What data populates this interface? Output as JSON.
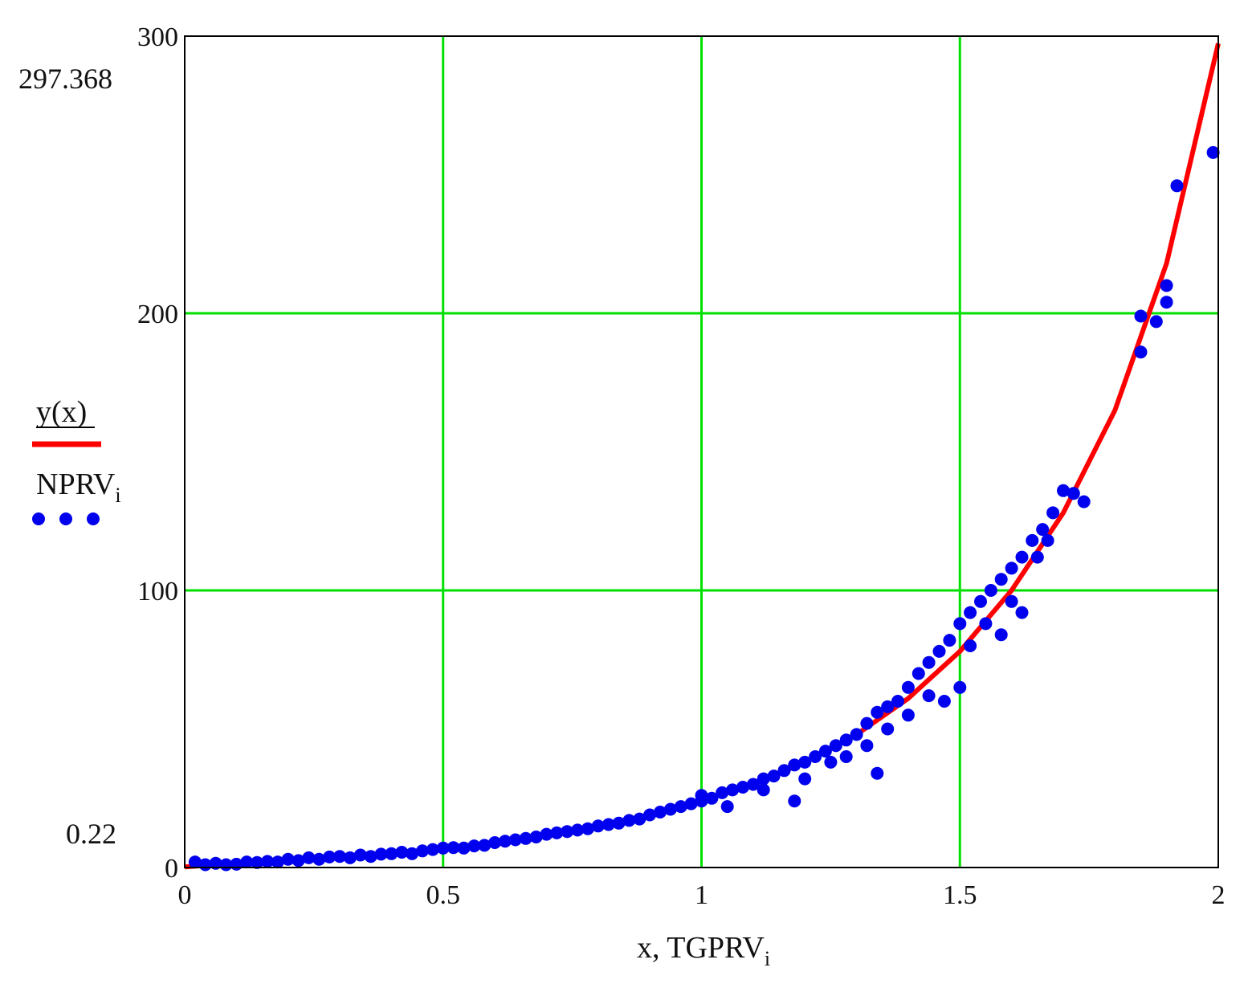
{
  "chart_data": {
    "type": "scatter",
    "title": "",
    "xlabel": "x, TGPRV",
    "xlabel_sub": "i",
    "ylabel": "",
    "xlim": [
      0,
      2
    ],
    "ylim": [
      0,
      300
    ],
    "x_ticks": [
      "0",
      "0.5",
      "1",
      "1.5",
      "2"
    ],
    "y_ticks": [
      "0",
      "100",
      "200",
      "300"
    ],
    "y_extra_labels": [
      "297.368",
      "0.22"
    ],
    "grid": true,
    "grid_color": "#00e000",
    "legend_position": "left",
    "series": [
      {
        "name": "y(x)",
        "kind": "line",
        "color": "#ff0000",
        "x": [
          0,
          0.1,
          0.2,
          0.3,
          0.4,
          0.5,
          0.6,
          0.7,
          0.8,
          0.9,
          1.0,
          1.1,
          1.2,
          1.3,
          1.4,
          1.5,
          1.6,
          1.7,
          1.8,
          1.9,
          2.0
        ],
        "y": [
          0.22,
          1.5,
          2.5,
          3.8,
          5.0,
          7.0,
          9.0,
          12.0,
          15.0,
          19.0,
          24.0,
          30.0,
          38.0,
          48.0,
          61.0,
          78.0,
          100.0,
          128.0,
          165.0,
          218.0,
          297.368
        ]
      },
      {
        "name": "NPRV",
        "name_sub": "i",
        "kind": "scatter",
        "color": "#0000ee",
        "points": [
          [
            0.02,
            2
          ],
          [
            0.04,
            1
          ],
          [
            0.06,
            1.5
          ],
          [
            0.08,
            1
          ],
          [
            0.1,
            1.2
          ],
          [
            0.12,
            2
          ],
          [
            0.14,
            1.8
          ],
          [
            0.16,
            2.2
          ],
          [
            0.18,
            2
          ],
          [
            0.2,
            3
          ],
          [
            0.22,
            2.5
          ],
          [
            0.24,
            3.5
          ],
          [
            0.26,
            3
          ],
          [
            0.28,
            3.8
          ],
          [
            0.3,
            4
          ],
          [
            0.32,
            3.5
          ],
          [
            0.34,
            4.5
          ],
          [
            0.36,
            4
          ],
          [
            0.38,
            4.8
          ],
          [
            0.4,
            5
          ],
          [
            0.42,
            5.5
          ],
          [
            0.44,
            5
          ],
          [
            0.46,
            6
          ],
          [
            0.48,
            6.5
          ],
          [
            0.5,
            7
          ],
          [
            0.52,
            7.2
          ],
          [
            0.54,
            7
          ],
          [
            0.56,
            7.8
          ],
          [
            0.58,
            8
          ],
          [
            0.6,
            9
          ],
          [
            0.62,
            9.5
          ],
          [
            0.64,
            10
          ],
          [
            0.66,
            10.5
          ],
          [
            0.68,
            11
          ],
          [
            0.7,
            12
          ],
          [
            0.72,
            12.5
          ],
          [
            0.74,
            13
          ],
          [
            0.76,
            13.5
          ],
          [
            0.78,
            14
          ],
          [
            0.8,
            15
          ],
          [
            0.82,
            15.5
          ],
          [
            0.84,
            16
          ],
          [
            0.86,
            17
          ],
          [
            0.88,
            17.5
          ],
          [
            0.9,
            19
          ],
          [
            0.92,
            20
          ],
          [
            0.94,
            21
          ],
          [
            0.96,
            22
          ],
          [
            0.98,
            23
          ],
          [
            1.0,
            24
          ],
          [
            1.0,
            26
          ],
          [
            1.02,
            25
          ],
          [
            1.04,
            27
          ],
          [
            1.06,
            28
          ],
          [
            1.08,
            29
          ],
          [
            1.1,
            30
          ],
          [
            1.12,
            32
          ],
          [
            1.14,
            33
          ],
          [
            1.16,
            35
          ],
          [
            1.18,
            37
          ],
          [
            1.2,
            38
          ],
          [
            1.22,
            40
          ],
          [
            1.24,
            42
          ],
          [
            1.26,
            44
          ],
          [
            1.28,
            46
          ],
          [
            1.3,
            48
          ],
          [
            1.32,
            52
          ],
          [
            1.34,
            56
          ],
          [
            1.36,
            58
          ],
          [
            1.38,
            60
          ],
          [
            1.4,
            65
          ],
          [
            1.42,
            70
          ],
          [
            1.44,
            74
          ],
          [
            1.46,
            78
          ],
          [
            1.48,
            82
          ],
          [
            1.5,
            88
          ],
          [
            1.52,
            92
          ],
          [
            1.54,
            96
          ],
          [
            1.56,
            100
          ],
          [
            1.58,
            104
          ],
          [
            1.6,
            108
          ],
          [
            1.62,
            112
          ],
          [
            1.64,
            118
          ],
          [
            1.66,
            122
          ],
          [
            1.68,
            128
          ],
          [
            1.7,
            136
          ],
          [
            1.72,
            135
          ],
          [
            1.74,
            132
          ],
          [
            1.05,
            22
          ],
          [
            1.12,
            28
          ],
          [
            1.18,
            24
          ],
          [
            1.2,
            32
          ],
          [
            1.25,
            38
          ],
          [
            1.28,
            40
          ],
          [
            1.32,
            44
          ],
          [
            1.34,
            34
          ],
          [
            1.36,
            50
          ],
          [
            1.4,
            55
          ],
          [
            1.44,
            62
          ],
          [
            1.47,
            60
          ],
          [
            1.5,
            65
          ],
          [
            1.52,
            80
          ],
          [
            1.55,
            88
          ],
          [
            1.58,
            84
          ],
          [
            1.6,
            96
          ],
          [
            1.62,
            92
          ],
          [
            1.65,
            112
          ],
          [
            1.67,
            118
          ],
          [
            1.85,
            199
          ],
          [
            1.85,
            186
          ],
          [
            1.88,
            197
          ],
          [
            1.9,
            204
          ],
          [
            1.9,
            210
          ],
          [
            1.92,
            246
          ],
          [
            1.99,
            258
          ]
        ]
      }
    ]
  }
}
